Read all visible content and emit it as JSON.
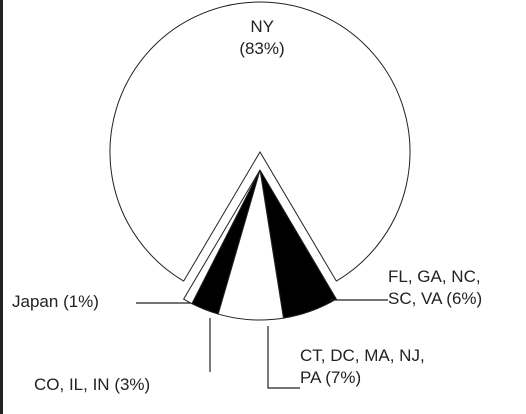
{
  "chart_data": {
    "type": "pie",
    "categories": [
      "NY",
      "FL, GA, NC, SC, VA",
      "CT, DC, MA, NJ, PA",
      "CO, IL, IN",
      "Japan"
    ],
    "values": [
      83,
      6,
      7,
      3,
      1
    ],
    "value_labels": [
      "(83%)",
      "(6%)",
      "(7%)",
      "(3%)",
      "(1%)"
    ],
    "colors": [
      "#ffffff",
      "#000000",
      "#ffffff",
      "#000000",
      "#ffffff"
    ]
  }
}
